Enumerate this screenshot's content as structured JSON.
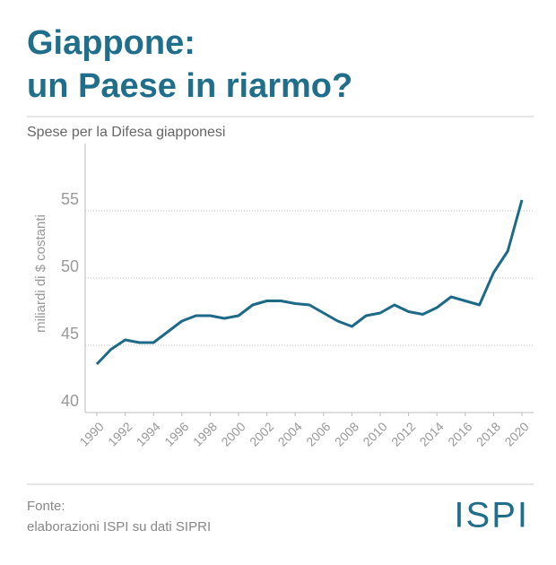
{
  "chart_data": {
    "type": "line",
    "title": [
      "Giappone:",
      "un Paese in riarmo?"
    ],
    "subtitle": "Spese per la Difesa giapponesi",
    "y_label": "miliardi di $ costanti",
    "source": [
      "Fonte:",
      "elaborazioni ISPI su dati SIPRI"
    ],
    "logo": "ISPI",
    "x": [
      1990,
      1991,
      1992,
      1993,
      1994,
      1995,
      1996,
      1997,
      1998,
      1999,
      2000,
      2001,
      2002,
      2003,
      2004,
      2005,
      2006,
      2007,
      2008,
      2009,
      2010,
      2011,
      2012,
      2013,
      2014,
      2015,
      2016,
      2017,
      2018,
      2019,
      2020
    ],
    "series": [
      {
        "color": "#1c6a88",
        "values": [
          43.6,
          44.7,
          45.4,
          45.2,
          45.2,
          46.0,
          46.8,
          47.2,
          47.2,
          47.0,
          47.2,
          48.0,
          48.3,
          48.3,
          48.1,
          48.0,
          47.4,
          46.8,
          46.4,
          47.2,
          47.4,
          48.0,
          47.5,
          47.3,
          47.8,
          48.6,
          48.3,
          48.0,
          50.4,
          52.0,
          55.8
        ]
      }
    ],
    "xlim": [
      1990,
      2020
    ],
    "xticks": [
      1990,
      1992,
      1994,
      1996,
      1998,
      2000,
      2002,
      2004,
      2006,
      2008,
      2010,
      2012,
      2014,
      2016,
      2018,
      2020
    ],
    "ylim": [
      40,
      60
    ],
    "yticks": [
      40,
      45,
      50,
      55
    ],
    "grid": true
  }
}
